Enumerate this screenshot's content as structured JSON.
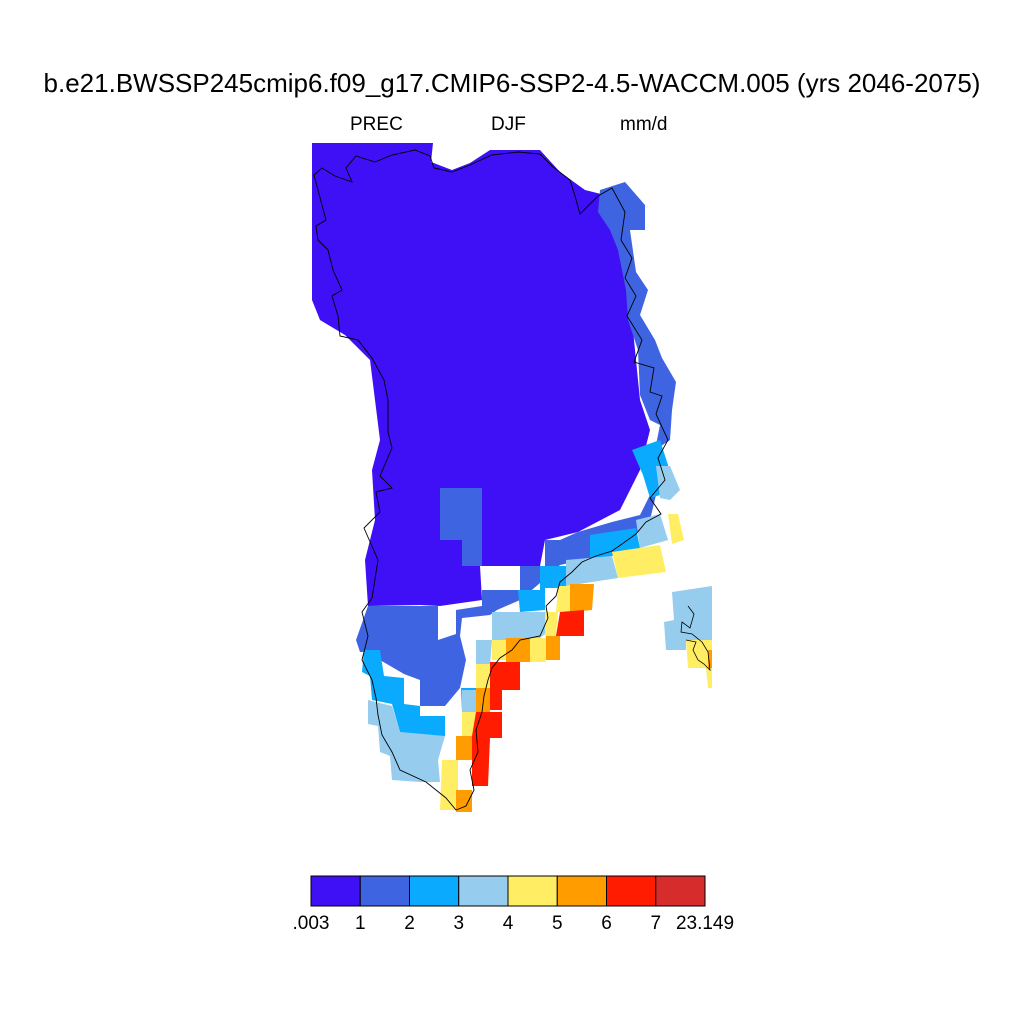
{
  "header": {
    "title": "b.e21.BWSSP245cmip6.f09_g17.CMIP6-SSP2-4.5-WACCM.005 (yrs 2046-2075)",
    "variable": "PREC",
    "season": "DJF",
    "units": "mm/d"
  },
  "colors": {
    "c0": "#3f0ff5",
    "c1": "#3f64e2",
    "c2": "#0aaaff",
    "c3": "#96cdee",
    "c4": "#ffee64",
    "c5": "#ff9d00",
    "c6": "#ff1c00",
    "c7": "#d62c2c"
  },
  "chart_data": {
    "type": "heatmap",
    "title": "b.e21.BWSSP245cmip6.f09_g17.CMIP6-SSP2-4.5-WACCM.005 (yrs 2046-2075)",
    "variable": "PREC",
    "season": "DJF",
    "units": "mm/d",
    "region": "Greenland",
    "levels": [
      ".003",
      "1",
      "2",
      "3",
      "4",
      "5",
      "6",
      "7",
      "23.149"
    ],
    "level_values": [
      0.003,
      1,
      2,
      3,
      4,
      5,
      6,
      7,
      23.149
    ],
    "bins": [
      {
        "range": [
          0.003,
          1
        ],
        "color": "#3f0ff5"
      },
      {
        "range": [
          1,
          2
        ],
        "color": "#3f64e2"
      },
      {
        "range": [
          2,
          3
        ],
        "color": "#0aaaff"
      },
      {
        "range": [
          3,
          4
        ],
        "color": "#96cdee"
      },
      {
        "range": [
          4,
          5
        ],
        "color": "#ffee64"
      },
      {
        "range": [
          5,
          6
        ],
        "color": "#ff9d00"
      },
      {
        "range": [
          6,
          7
        ],
        "color": "#ff1c00"
      },
      {
        "range": [
          7,
          23.149
        ],
        "color": "#d62c2c"
      }
    ],
    "pattern": "driest (<1 mm/d) over the interior and north; 1-3 mm/d along the east coast; 4-7 mm/d along the southeast coast; 3-5 mm/d near the southern tip"
  }
}
